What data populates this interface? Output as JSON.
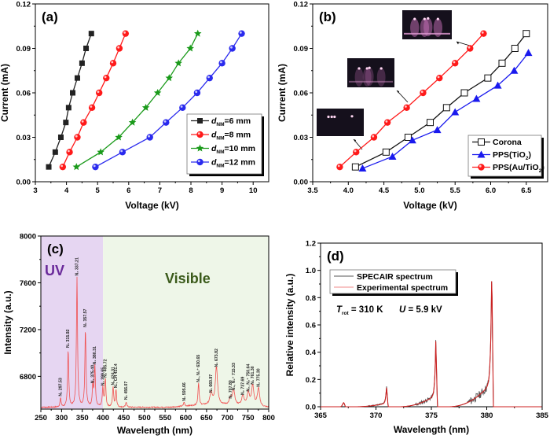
{
  "chart_data": [
    {
      "id": "a",
      "type": "line",
      "panel_label": "(a)",
      "xlabel": "Voltage (kV)",
      "ylabel": "Current (mA)",
      "xlim": [
        3,
        10.5
      ],
      "ylim": [
        0,
        0.12
      ],
      "xticks": [
        3,
        4,
        5,
        6,
        7,
        8,
        9,
        10
      ],
      "yticks": [
        0.0,
        0.03,
        0.06,
        0.09,
        0.12
      ],
      "ytick_labels": [
        "0.00",
        "0.03",
        "0.06",
        "0.09",
        "0.12"
      ],
      "legend_position": "bottom-right",
      "series": [
        {
          "name": "d_NM=6 mm",
          "legend_main": "d",
          "legend_sub": "NM",
          "legend_rest": "=6 mm",
          "color": "#222222",
          "marker": "square",
          "x": [
            3.43,
            3.64,
            3.82,
            3.98,
            4.07,
            4.2,
            4.35,
            4.5,
            4.63,
            4.8
          ],
          "y": [
            0.01,
            0.02,
            0.03,
            0.04,
            0.05,
            0.06,
            0.07,
            0.08,
            0.09,
            0.1
          ]
        },
        {
          "name": "d_NM=8 mm",
          "legend_main": "d",
          "legend_sub": "NM",
          "legend_rest": "=8 mm",
          "color": "#ff1a1a",
          "marker": "circle",
          "x": [
            3.88,
            4.1,
            4.35,
            4.55,
            4.82,
            5.05,
            5.28,
            5.5,
            5.7,
            5.9
          ],
          "y": [
            0.01,
            0.02,
            0.03,
            0.04,
            0.05,
            0.06,
            0.07,
            0.08,
            0.09,
            0.1
          ]
        },
        {
          "name": "d_NM=10 mm",
          "legend_main": "d",
          "legend_sub": "NM",
          "legend_rest": "=10 mm",
          "color": "#1a9a1a",
          "marker": "star",
          "x": [
            4.32,
            5.1,
            5.68,
            6.12,
            6.55,
            6.93,
            7.3,
            7.6,
            7.98,
            8.22
          ],
          "y": [
            0.01,
            0.02,
            0.03,
            0.04,
            0.05,
            0.06,
            0.07,
            0.08,
            0.09,
            0.1
          ]
        },
        {
          "name": "d_NM=12 mm",
          "legend_main": "d",
          "legend_sub": "NM",
          "legend_rest": "=12 mm",
          "color": "#2a2aee",
          "marker": "circle",
          "x": [
            4.93,
            5.8,
            6.68,
            7.2,
            7.73,
            8.2,
            8.6,
            9.0,
            9.33,
            9.63
          ],
          "y": [
            0.01,
            0.02,
            0.03,
            0.04,
            0.05,
            0.06,
            0.07,
            0.08,
            0.09,
            0.1
          ]
        }
      ]
    },
    {
      "id": "b",
      "type": "line",
      "panel_label": "(b)",
      "xlabel": "Voltage (kV)",
      "ylabel": "Current (mA)",
      "xlim": [
        3.5,
        6.8
      ],
      "ylim": [
        0,
        0.12
      ],
      "xticks": [
        3.5,
        4.0,
        4.5,
        5.0,
        5.5,
        6.0,
        6.5
      ],
      "xtick_labels": [
        "3.5",
        "4.0",
        "4.5",
        "5.0",
        "5.5",
        "6.0",
        "6.5"
      ],
      "yticks": [
        0.0,
        0.03,
        0.06,
        0.09,
        0.12
      ],
      "ytick_labels": [
        "0.00",
        "0.03",
        "0.06",
        "0.09",
        "0.12"
      ],
      "legend_position": "bottom-right",
      "insets": [
        "discharge photo (low current)",
        "discharge photo (medium current)",
        "discharge photo (high current)"
      ],
      "series": [
        {
          "name": "Corona",
          "legend_main": "Corona",
          "color": "#111111",
          "marker": "open-square",
          "x": [
            4.1,
            4.53,
            4.84,
            5.15,
            5.38,
            5.63,
            5.96,
            6.16,
            6.34,
            6.5
          ],
          "y": [
            0.01,
            0.02,
            0.03,
            0.04,
            0.05,
            0.06,
            0.07,
            0.08,
            0.09,
            0.1
          ]
        },
        {
          "name": "PPS(TiO2)",
          "legend_main": "PPS(TiO",
          "legend_sub": "2",
          "legend_rest": ")",
          "color": "#1a1aee",
          "marker": "triangle",
          "x": [
            4.2,
            4.62,
            4.9,
            5.25,
            5.5,
            5.8,
            6.1,
            6.33,
            6.53
          ],
          "y": [
            0.009,
            0.017,
            0.028,
            0.035,
            0.047,
            0.056,
            0.065,
            0.075,
            0.087
          ]
        },
        {
          "name": "PPS(Au/TiO2)",
          "legend_main": "PPS(Au/TiO",
          "legend_sub": "2",
          "legend_rest": ")",
          "color": "#ff1a1a",
          "marker": "circle",
          "x": [
            3.88,
            4.11,
            4.36,
            4.55,
            4.82,
            5.05,
            5.28,
            5.5,
            5.71,
            5.9
          ],
          "y": [
            0.01,
            0.02,
            0.03,
            0.04,
            0.05,
            0.06,
            0.07,
            0.08,
            0.09,
            0.1
          ]
        }
      ]
    },
    {
      "id": "c",
      "type": "line",
      "panel_label": "(c)",
      "xlabel": "Wavelength (nm)",
      "ylabel": "Intensity (a.u.)",
      "xlim": [
        250,
        800
      ],
      "ylim": [
        6520,
        8000
      ],
      "xticks": [
        250,
        300,
        350,
        400,
        450,
        500,
        550,
        600,
        650,
        700,
        750,
        800
      ],
      "yticks": [
        6800,
        7200,
        7600,
        8000
      ],
      "regions": [
        {
          "label": "UV",
          "from": 250,
          "to": 400,
          "color": "#e6d6f2",
          "text_color": "#6a2a9a"
        },
        {
          "label": "Visible",
          "from": 400,
          "to": 800,
          "color": "#eef6e8",
          "text_color": "#3a5a1a"
        }
      ],
      "baseline": 6535,
      "line_color": "#f05050",
      "peaks": [
        {
          "x": 297.53,
          "y": 6610,
          "label": "N₂ 297.53"
        },
        {
          "x": 315.92,
          "y": 7025,
          "label": "N₂ 315.92"
        },
        {
          "x": 337.21,
          "y": 7640,
          "label": "N₂ 337.21"
        },
        {
          "x": 357.57,
          "y": 7200,
          "label": "N₂ 357.57"
        },
        {
          "x": 375.4,
          "y": 6720,
          "label": "N₂ 375.40"
        },
        {
          "x": 380.31,
          "y": 6880,
          "label": "N₂ 380.31"
        },
        {
          "x": 399.65,
          "y": 6700,
          "label": "N₂ 399.65"
        },
        {
          "x": 405.72,
          "y": 6770,
          "label": "N₂ 405.72"
        },
        {
          "x": 424.31,
          "y": 6705,
          "label": "N₂ 424.31"
        },
        {
          "x": 431.4,
          "y": 6680,
          "label": "N₂, CH 431.4"
        },
        {
          "x": 456.07,
          "y": 6580,
          "label": "N₂ 456.07"
        },
        {
          "x": 595.66,
          "y": 6570,
          "label": "N₂ 595.66"
        },
        {
          "x": 630.65,
          "y": 6730,
          "label": "N₂, N₂⁺ 630.65"
        },
        {
          "x": 660.97,
          "y": 6640,
          "label": "N₂ 660.97"
        },
        {
          "x": 673.82,
          "y": 6860,
          "label": "N₂ 673.82"
        },
        {
          "x": 707.8,
          "y": 6590,
          "label": "N₂ 707.80"
        },
        {
          "x": 715.33,
          "y": 6660,
          "label": "N₂, N₂⁺ 715.33"
        },
        {
          "x": 737.69,
          "y": 6620,
          "label": "N₂ 737.69"
        },
        {
          "x": 750.64,
          "y": 6650,
          "label": "N₂, N₂⁺ 750.64"
        },
        {
          "x": 761.3,
          "y": 6710,
          "label": "N₂ 761.30"
        },
        {
          "x": 775.3,
          "y": 6690,
          "label": "N₂ 775.30"
        }
      ]
    },
    {
      "id": "d",
      "type": "line",
      "panel_label": "(d)",
      "xlabel": "Wavelength (nm)",
      "ylabel": "Relative intensity (a.u.)",
      "xlim": [
        365,
        385
      ],
      "ylim": [
        0,
        1.2
      ],
      "xticks": [
        365,
        370,
        375,
        380,
        385
      ],
      "yticks": [
        0.0,
        0.2,
        0.4,
        0.6,
        0.8,
        1.0,
        1.2
      ],
      "ytick_labels": [
        "0.0",
        "0.2",
        "0.4",
        "0.6",
        "0.8",
        "1.0",
        "1.2"
      ],
      "legend_position": "top-left",
      "annotation": {
        "t_main": "T",
        "t_sub": "rot",
        "t_rest": " = 310 K",
        "u_main": "U",
        "u_rest": " = 5.9 kV"
      },
      "series": [
        {
          "name": "SPECAIR spectrum",
          "color": "#555555",
          "bands": [
            {
              "start": 366.2,
              "head": 367.1,
              "peak": 0.03
            },
            {
              "start": 368.0,
              "head": 370.95,
              "peak": 0.16
            },
            {
              "start": 372.0,
              "head": 375.4,
              "peak": 0.49
            },
            {
              "start": 376.5,
              "head": 380.45,
              "peak": 1.0
            }
          ]
        },
        {
          "name": "Experimental spectrum",
          "color": "#cc2020",
          "bands": [
            {
              "start": 366.2,
              "head": 367.1,
              "peak": 0.03
            },
            {
              "start": 368.0,
              "head": 370.95,
              "peak": 0.15
            },
            {
              "start": 372.0,
              "head": 375.4,
              "peak": 0.48
            },
            {
              "start": 376.5,
              "head": 380.45,
              "peak": 1.0
            }
          ]
        }
      ]
    }
  ]
}
